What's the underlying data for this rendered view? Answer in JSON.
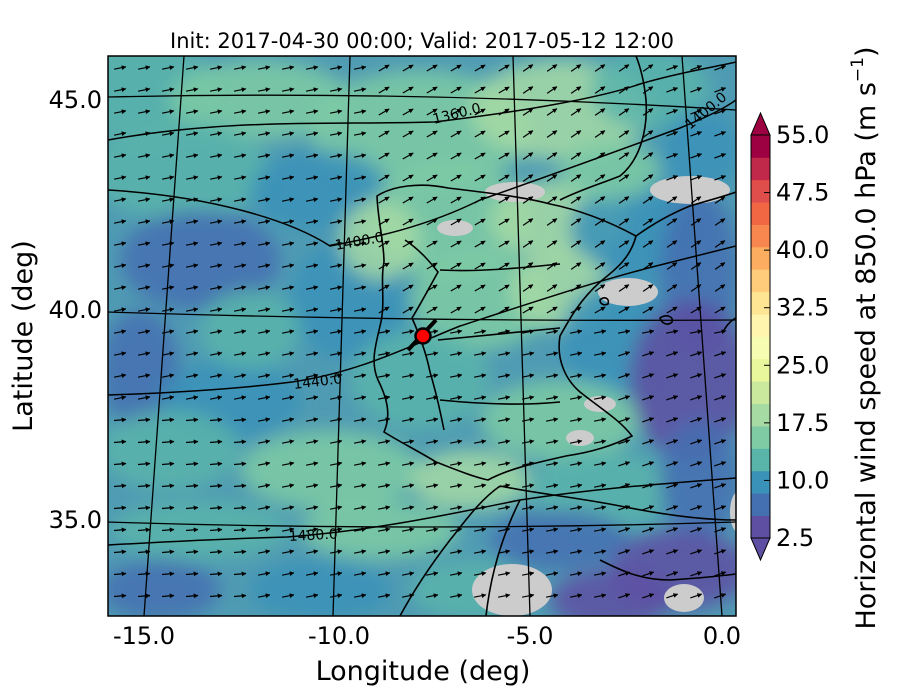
{
  "title": "Init: 2017-04-30 00:00; Valid: 2017-05-12 12:00",
  "xlabel": "Longitude (deg)",
  "ylabel": "Latitude (deg)",
  "colorbar_label": "Horizontal wind speed at 850.0 hPa (m s$^{-1}$)",
  "colorbar_label_main": "Horizontal wind speed at 850.0 hPa (m s",
  "colorbar_label_exp": "−1",
  "colorbar_label_close": ")",
  "x_ticks": [
    {
      "value": -15.0,
      "label": "-15.0"
    },
    {
      "value": -10.0,
      "label": "-10.0"
    },
    {
      "value": -5.0,
      "label": "-5.0"
    },
    {
      "value": 0.0,
      "label": "0.0"
    }
  ],
  "y_ticks": [
    {
      "value": 45.0,
      "label": "45.0"
    },
    {
      "value": 40.0,
      "label": "40.0"
    },
    {
      "value": 35.0,
      "label": "35.0"
    }
  ],
  "colorbar": {
    "min": 2.5,
    "max": 55.0,
    "step": 2.5,
    "tick_labels": [
      "55.0",
      "47.5",
      "40.0",
      "32.5",
      "25.0",
      "17.5",
      "10.0",
      "2.5"
    ],
    "tick_values": [
      55.0,
      47.5,
      40.0,
      32.5,
      25.0,
      17.5,
      10.0,
      2.5
    ],
    "colors": [
      "#5e4fa2",
      "#4470b1",
      "#3b92b8",
      "#59b4aa",
      "#7ecba4",
      "#a6dba4",
      "#cae99d",
      "#e8f69c",
      "#f7fcb3",
      "#fff5ae",
      "#fee593",
      "#fecc7b",
      "#fdad60",
      "#f8864f",
      "#f16744",
      "#df4e4b",
      "#c1294a",
      "#9e0142"
    ]
  },
  "contour_labels": [
    "1360.0",
    "1400.0",
    "1400.0",
    "1440.0",
    "1480.0"
  ],
  "marker": {
    "lon": -7.6,
    "lat": 39.3,
    "color": "#ff0000"
  },
  "chart_data": {
    "type": "heatmap",
    "title": "Init: 2017-04-30 00:00; Valid: 2017-05-12 12:00",
    "xlabel": "Longitude (deg)",
    "ylabel": "Latitude (deg)",
    "xlim": [
      -16.0,
      0.0
    ],
    "ylim": [
      32.8,
      46.2
    ],
    "variable": "Horizontal wind speed at 850.0 hPa (m s^-1)",
    "colorbar_range": [
      2.5,
      55.0
    ],
    "geopotential_height_contours_m": [
      1360.0,
      1400.0,
      1440.0,
      1480.0
    ],
    "wind_barbs": "black arrows, predominantly westerly to west-southwesterly",
    "location_marker": {
      "lon": -7.6,
      "lat": 39.3
    }
  }
}
